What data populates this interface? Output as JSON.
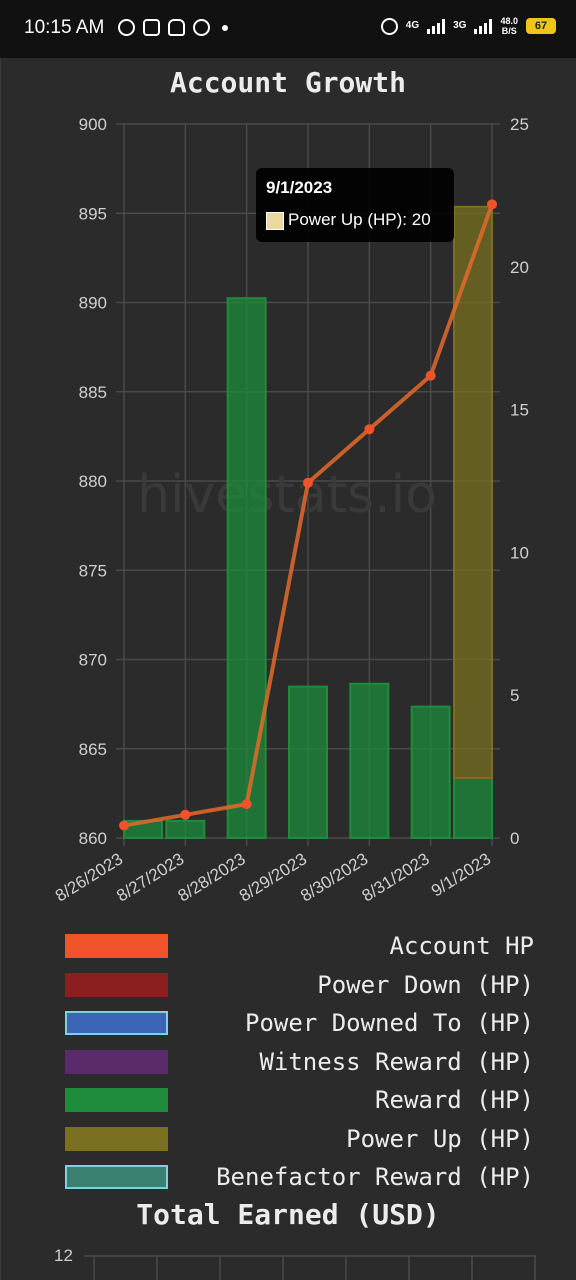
{
  "status_bar": {
    "time": "10:15 AM",
    "net_1": "4G",
    "net_2": "3G",
    "speed": "48.0\nB/S",
    "battery": "67",
    "icons": [
      "bitcoin-icon",
      "instagram-icon",
      "snapchat-icon",
      "chat-icon",
      "dot-icon",
      "alarm-icon",
      "signal-icon",
      "signal-icon",
      "battery-icon"
    ]
  },
  "watermark": "hivestats.io",
  "chart_data": {
    "type": "bar",
    "title": "Account Growth",
    "categories": [
      "8/26/2023",
      "8/27/2023",
      "8/28/2023",
      "8/29/2023",
      "8/30/2023",
      "8/31/2023",
      "9/1/2023"
    ],
    "y_left": {
      "min": 860,
      "max": 900,
      "ticks": [
        900,
        895,
        890,
        885,
        880,
        875,
        870,
        865,
        860
      ]
    },
    "y_right": {
      "min": 0,
      "max": 25,
      "ticks": [
        25,
        20,
        15,
        10,
        5,
        0
      ]
    },
    "grid": true,
    "legend_position": "bottom",
    "series": [
      {
        "name": "Account HP",
        "type": "line",
        "axis": "left",
        "color": "#f0522a",
        "values": [
          860.7,
          861.3,
          861.9,
          879.9,
          882.9,
          885.9,
          895.5
        ]
      },
      {
        "name": "Power Down (HP)",
        "type": "bar",
        "axis": "right",
        "color": "#8b1e1e",
        "values": [
          0,
          0,
          0,
          0,
          0,
          0,
          0
        ]
      },
      {
        "name": "Power Downed To (HP)",
        "type": "bar",
        "axis": "right",
        "color": "#3a66b5",
        "values": [
          0,
          0,
          0,
          0,
          0,
          0,
          0
        ]
      },
      {
        "name": "Witness Reward (HP)",
        "type": "bar",
        "axis": "right",
        "color": "#5a2a6a",
        "values": [
          0,
          0,
          0,
          0,
          0,
          0,
          0
        ]
      },
      {
        "name": "Reward (HP)",
        "type": "bar",
        "axis": "right",
        "color": "#1e8c3c",
        "values": [
          0.6,
          0.6,
          18.9,
          5.3,
          5.4,
          4.6,
          2.1
        ]
      },
      {
        "name": "Power Up (HP)",
        "type": "bar",
        "axis": "right",
        "color": "#7a7020",
        "values": [
          0,
          0,
          0,
          0,
          0,
          0,
          20
        ]
      },
      {
        "name": "Benefactor Reward (HP)",
        "type": "bar",
        "axis": "right",
        "color": "#3a8070",
        "values": [
          0,
          0,
          0,
          0,
          0,
          0,
          0
        ]
      }
    ],
    "tooltip": {
      "title": "9/1/2023",
      "label": "Power Up (HP): 20"
    }
  },
  "total_earned": {
    "title": "Total Earned (USD)",
    "first_tick": "12"
  }
}
